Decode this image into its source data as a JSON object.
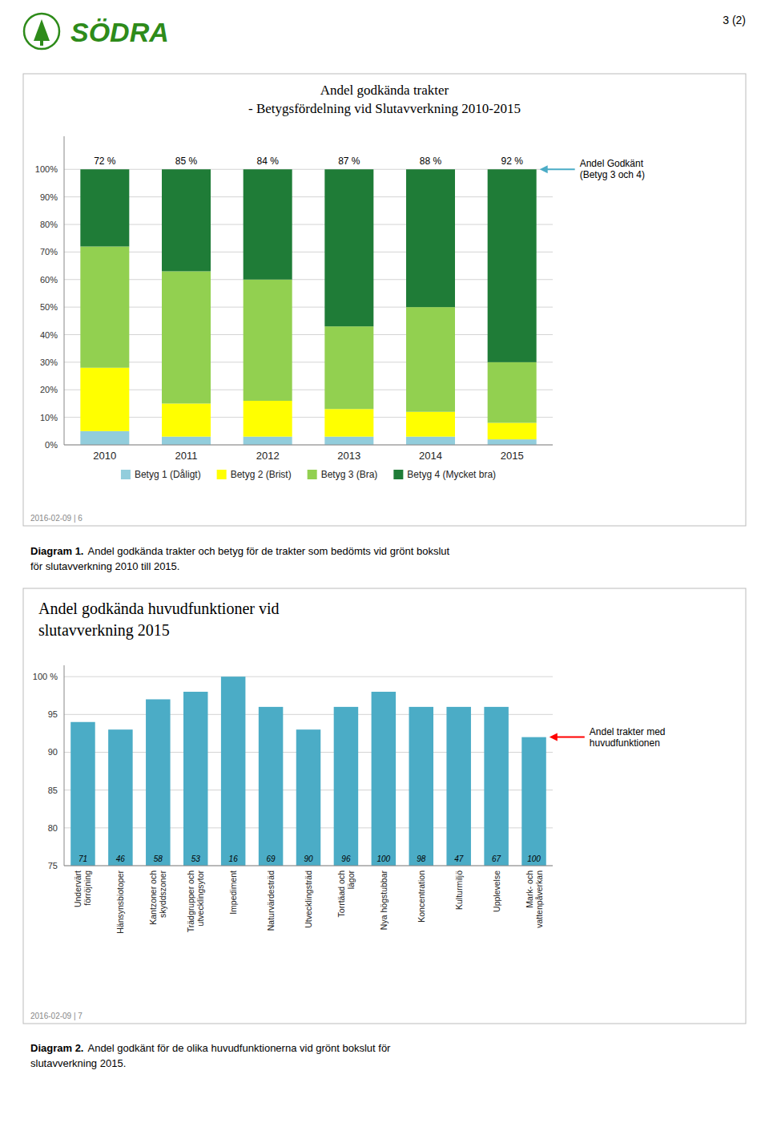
{
  "brand": "SÖDRA",
  "brand_color": "#2E8B1A",
  "page_number": "3 (2)",
  "chart_data": [
    {
      "type": "bar",
      "stacked": true,
      "title": "Andel godkända trakter\n- Betygsfördelning vid Slutavverkning 2010-2015",
      "categories": [
        "2010",
        "2011",
        "2012",
        "2013",
        "2014",
        "2015"
      ],
      "series": [
        {
          "name": "Betyg 1 (Dåligt)",
          "color": "#92CDDC",
          "values": [
            5,
            3,
            3,
            3,
            3,
            2
          ]
        },
        {
          "name": "Betyg 2 (Brist)",
          "color": "#FFFF00",
          "values": [
            23,
            12,
            13,
            10,
            9,
            6
          ]
        },
        {
          "name": "Betyg 3 (Bra)",
          "color": "#92D050",
          "values": [
            44,
            48,
            44,
            30,
            38,
            22
          ]
        },
        {
          "name": "Betyg 4 (Mycket bra)",
          "color": "#1F7C37",
          "values": [
            28,
            37,
            40,
            57,
            50,
            70
          ]
        }
      ],
      "ylim": [
        0,
        112
      ],
      "yticks": [
        {
          "value": 0,
          "label": "0%"
        },
        {
          "value": 10,
          "label": "10%"
        },
        {
          "value": 20,
          "label": "20%"
        },
        {
          "value": 30,
          "label": "30%"
        },
        {
          "value": 40,
          "label": "40%"
        },
        {
          "value": 50,
          "label": "50%"
        },
        {
          "value": 60,
          "label": "60%"
        },
        {
          "value": 70,
          "label": "70%"
        },
        {
          "value": 80,
          "label": "80%"
        },
        {
          "value": 90,
          "label": "90%"
        },
        {
          "value": 100,
          "label": "100%"
        }
      ],
      "grid": true,
      "legend": "bottom",
      "approved_labels": [
        "72 %",
        "85 %",
        "84 %",
        "87 %",
        "88 %",
        "92 %"
      ],
      "annotations": [
        {
          "text": "Andel Godkänt\n(Betyg 3 och 4)",
          "category": "2015",
          "y": 100,
          "color": "#4BACC6"
        }
      ],
      "footer": "2016-02-09  |  6",
      "caption_label": "Diagram 1.",
      "caption": "Andel godkända trakter och betyg för de trakter som bedömts vid grönt bokslut\nför slutavverkning 2010 till 2015."
    },
    {
      "type": "bar",
      "title": "Andel godkända huvudfunktioner vid\nslutavverkning 2015",
      "categories": [
        "Undervärt\nförröjning",
        "Hänsynsbiotoper",
        "Kantzoner och\nskyddszoner",
        "Trädgrupper och\nutvecklingsytor",
        "Impediment",
        "Naturvärdesträd",
        "Utvecklingsträd",
        "Torrtäad och\nlägor",
        "Nya högstubbar",
        "Koncentration",
        "Kulturmiljö",
        "Upplevelse",
        "Mark- och\nvattenpåverkan"
      ],
      "values": [
        94,
        93,
        97,
        98,
        100,
        96,
        93,
        96,
        98,
        96,
        96,
        96,
        92
      ],
      "color": "#4BACC6",
      "n_values": [
        71,
        46,
        58,
        53,
        16,
        69,
        90,
        96,
        100,
        98,
        47,
        67,
        100
      ],
      "ylim": [
        75,
        101.5
      ],
      "yticks": [
        75,
        80,
        85,
        90,
        95,
        {
          "value": 100,
          "label": "100 %"
        }
      ],
      "grid": true,
      "annotations": [
        {
          "text": "Andel trakter med\nhuvudfunktionen",
          "category": "Mark- och\nvattenpåverkan",
          "y": 92,
          "color": "#FF0000"
        }
      ],
      "footer": "2016-02-09  |  7",
      "caption_label": "Diagram 2.",
      "caption": "Andel godkänt för de olika huvudfunktionerna vid grönt bokslut för\nslutavverkning 2015."
    }
  ]
}
